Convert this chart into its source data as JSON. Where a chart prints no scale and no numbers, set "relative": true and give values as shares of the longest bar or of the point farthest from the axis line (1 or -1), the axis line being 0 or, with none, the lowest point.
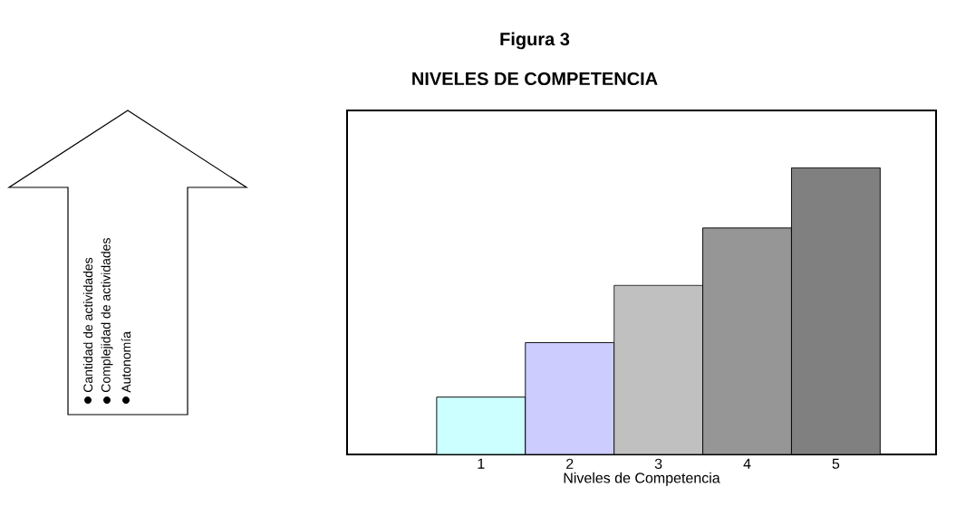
{
  "chart_data": {
    "type": "bar",
    "title": "Figura 3",
    "subtitle": "NIVELES DE COMPETENCIA",
    "xlabel": "Niveles de Competencia",
    "relative": true,
    "categories": [
      "1",
      "2",
      "3",
      "4",
      "5"
    ],
    "values": [
      0.2,
      0.39,
      0.59,
      0.79,
      1
    ],
    "colors": [
      "#ccffff",
      "#ccccff",
      "#c0c0c0",
      "#969696",
      "#808080"
    ],
    "annotations": [
      "Cantidad de actividades",
      "Complejidad  de  actividades",
      "Autonomía"
    ]
  }
}
